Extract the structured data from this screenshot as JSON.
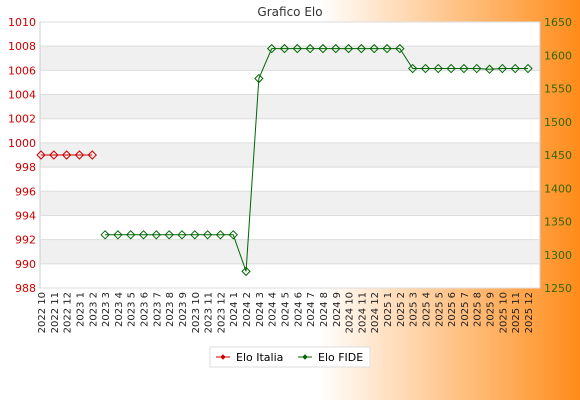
{
  "chart_data": {
    "type": "line",
    "title": "Grafico Elo",
    "categories": [
      "2022 10",
      "2022 11",
      "2022 12",
      "2023 1",
      "2023 2",
      "2023 3",
      "2023 4",
      "2023 5",
      "2023 6",
      "2023 7",
      "2023 8",
      "2023 9",
      "2023 10",
      "2023 11",
      "2023 12",
      "2024 1",
      "2024 2",
      "2024 3",
      "2024 4",
      "2024 5",
      "2024 6",
      "2024 7",
      "2024 8",
      "2024 9",
      "2024 10",
      "2024 11",
      "2024 12",
      "2025 1",
      "2025 2",
      "2025 3",
      "2025 4",
      "2025 5",
      "2025 6",
      "2025 7",
      "2025 8",
      "2025 9",
      "2025 10",
      "2025 11",
      "2025 12"
    ],
    "y_left": {
      "min": 988,
      "max": 1010,
      "ticks": [
        988,
        990,
        992,
        994,
        996,
        998,
        1000,
        1002,
        1004,
        1006,
        1008,
        1010
      ],
      "color": "#cc0000"
    },
    "y_right": {
      "min": 1250,
      "max": 1650,
      "ticks": [
        1250,
        1300,
        1350,
        1400,
        1450,
        1500,
        1550,
        1600,
        1650
      ],
      "color": "#336600"
    },
    "series": [
      {
        "name": "Elo Italia",
        "axis": "left",
        "color": "#cc0000",
        "values": [
          999,
          999,
          999,
          999,
          999,
          null,
          null,
          null,
          null,
          null,
          null,
          null,
          null,
          null,
          null,
          null,
          null,
          null,
          null,
          null,
          null,
          null,
          null,
          null,
          null,
          null,
          null,
          null,
          null,
          null,
          null,
          null,
          null,
          null,
          null,
          null,
          null,
          null,
          null
        ]
      },
      {
        "name": "Elo FIDE",
        "axis": "right",
        "color": "#006600",
        "values": [
          null,
          null,
          null,
          null,
          null,
          1330,
          1330,
          1330,
          1330,
          1330,
          1330,
          1330,
          1330,
          1330,
          1330,
          1330,
          1275,
          1565,
          1610,
          1610,
          1610,
          1610,
          1610,
          1610,
          1610,
          1610,
          1610,
          1610,
          1610,
          1580,
          1580,
          1580,
          1580,
          1580,
          1580,
          1579,
          1580,
          1580,
          1580
        ]
      }
    ],
    "grid": true,
    "legend_position": "bottom-center"
  },
  "colors": {
    "background_gradient": [
      "#ffffff",
      "#ff8c1a"
    ],
    "plot_band_light": "#ffffff",
    "plot_band_dark": "#f0f0f0"
  }
}
